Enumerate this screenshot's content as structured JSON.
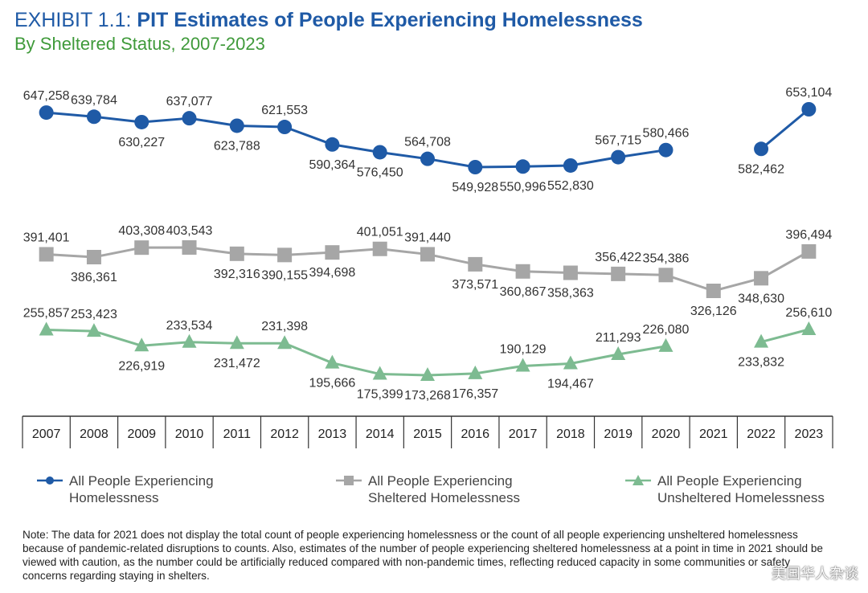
{
  "header": {
    "exhibit": "EXHIBIT 1.1:",
    "title": "PIT Estimates of People Experiencing Homelessness",
    "subtitle": "By Sheltered Status, 2007-2023"
  },
  "chart_data": {
    "type": "line",
    "categories": [
      "2007",
      "2008",
      "2009",
      "2010",
      "2011",
      "2012",
      "2013",
      "2014",
      "2015",
      "2016",
      "2017",
      "2018",
      "2019",
      "2020",
      "2021",
      "2022",
      "2023"
    ],
    "series": [
      {
        "name": "All People Experiencing Homelessness",
        "color": "#1f5aa6",
        "marker": "circle",
        "values": [
          647258,
          639784,
          630227,
          637077,
          623788,
          621553,
          590364,
          576450,
          564708,
          549928,
          550996,
          552830,
          567715,
          580466,
          null,
          582462,
          653104
        ],
        "labels": [
          "647,258",
          "639,784",
          "630,227",
          "637,077",
          "623,788",
          "621,553",
          "590,364",
          "576,450",
          "564,708",
          "549,928",
          "550,996",
          "552,830",
          "567,715",
          "580,466",
          "",
          "582,462",
          "653,104"
        ]
      },
      {
        "name": "All People Experiencing Sheltered Homelessness",
        "color": "#a6a6a6",
        "marker": "square",
        "values": [
          391401,
          386361,
          403308,
          403543,
          392316,
          390155,
          394698,
          401051,
          391440,
          373571,
          360867,
          358363,
          356422,
          354386,
          326126,
          348630,
          396494
        ],
        "labels": [
          "391,401",
          "386,361",
          "403,308",
          "403,543",
          "392,316",
          "390,155",
          "394,698",
          "401,051",
          "391,440",
          "373,571",
          "360,867",
          "358,363",
          "356,422",
          "354,386",
          "326,126",
          "348,630",
          "396,494"
        ]
      },
      {
        "name": "All People Experiencing Unsheltered Homelessness",
        "color": "#7dbb91",
        "marker": "triangle",
        "values": [
          255857,
          253423,
          226919,
          233534,
          231472,
          231398,
          195666,
          175399,
          173268,
          176357,
          190129,
          194467,
          211293,
          226080,
          null,
          233832,
          256610
        ],
        "labels": [
          "255,857",
          "253,423",
          "226,919",
          "233,534",
          "231,472",
          "231,398",
          "195,666",
          "175,399",
          "173,268",
          "176,357",
          "190,129",
          "194,467",
          "211,293",
          "226,080",
          "",
          "233,832",
          "256,610"
        ]
      }
    ],
    "legend_position": "bottom",
    "grid": false
  },
  "legend": {
    "all_line1": "All People Experiencing",
    "all_line2": "Homelessness",
    "sheltered_line1": "All People Experiencing",
    "sheltered_line2": "Sheltered Homelessness",
    "unsheltered_line1": "All People Experiencing",
    "unsheltered_line2": "Unsheltered Homelessness"
  },
  "note": "Note: The data for 2021 does not display the total count of people experiencing homelessness or the count of all people experiencing unsheltered homelessness because of pandemic-related disruptions to counts. Also, estimates of the number of people experiencing sheltered homelessness at a point in time in 2021 should be viewed with caution, as the number could be artificially reduced compared with non-pandemic times, reflecting reduced capacity in some communities or safety concerns regarding staying in shelters.",
  "watermark": "美国华人杂谈"
}
